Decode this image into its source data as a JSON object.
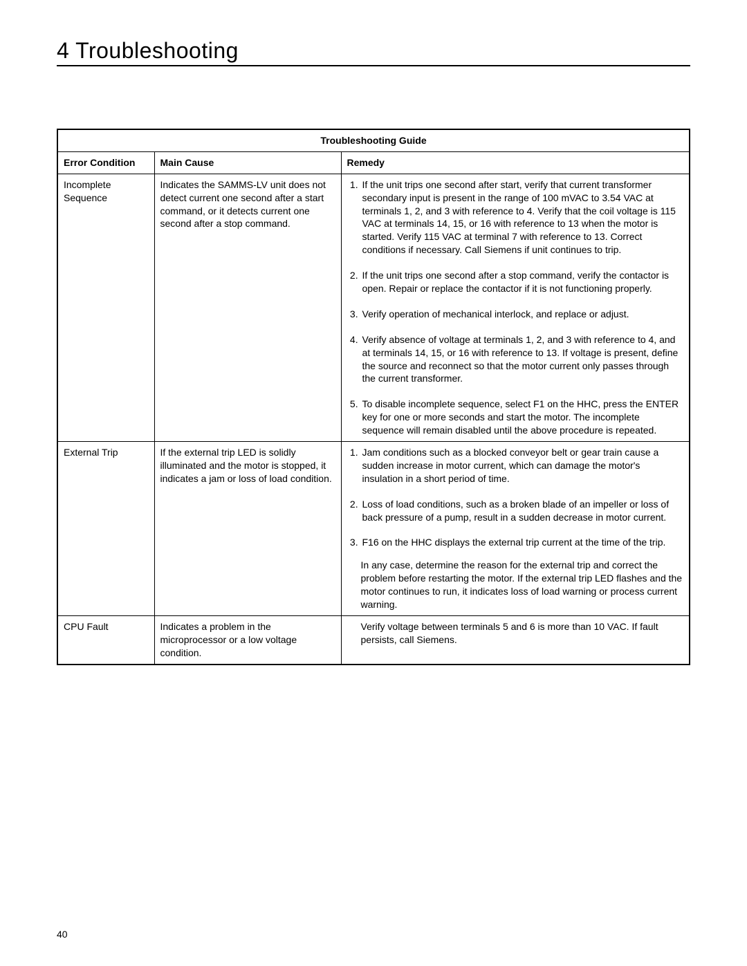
{
  "chapter": {
    "title": "4 Troubleshooting"
  },
  "pageNumber": "40",
  "table": {
    "guideHeader": "Troubleshooting Guide",
    "columns": {
      "error": "Error Condition",
      "cause": "Main Cause",
      "remedy": "Remedy"
    },
    "rows": [
      {
        "error": "Incomplete Sequence",
        "cause": "Indicates the SAMMS-LV unit does not detect current one second after a start command, or it detects current one second after a stop command.",
        "remedy": {
          "ordered": [
            "If the unit trips one second after start, verify that current transformer secondary input is present in the range of 100 mVAC to 3.54 VAC at terminals 1, 2, and 3 with reference to 4. Verify that the coil voltage is 115 VAC at terminals 14, 15, or 16 with reference to 13  when the motor is started. Verify 115 VAC at terminal 7 with reference to 13. Correct conditions if necessary. Call Siemens if unit continues to trip.",
            "If the unit trips one second after a stop command, verify the contactor is open. Repair or replace the contactor if it is not functioning properly.",
            "Verify operation of mechanical interlock, and replace or adjust.",
            "Verify absence of voltage at terminals 1, 2, and 3 with reference to 4, and at terminals 14, 15, or 16 with reference to 13. If voltage is present, define the source and reconnect so that the motor current only passes through the current transformer.",
            "To disable incomplete sequence, select F1 on the HHC, press the ENTER key for one or more seconds and start the motor.  The incomplete sequence will remain disabled until the above procedure is repeated."
          ],
          "tail": ""
        }
      },
      {
        "error": "External Trip",
        "cause": "If the external trip LED is solidly illuminated and the motor is stopped, it indicates a jam or loss of load condition.",
        "remedy": {
          "ordered": [
            "Jam conditions such as a blocked conveyor belt or gear train cause a sudden increase in motor current, which can damage the motor's insulation in a short period of time.",
            "Loss of load conditions, such as a broken blade of an impeller or loss of back pressure of a pump, result in a sudden decrease in motor current.",
            "F16 on the HHC displays the external trip current at the time of the trip."
          ],
          "tail": "In any case, determine the reason for the external trip and correct the problem before restarting the motor. If the external trip LED flashes and the motor continues to run, it indicates loss of load warning or process current warning."
        }
      },
      {
        "error": "CPU Fault",
        "cause": "Indicates a problem in the microprocessor or a low voltage condition.",
        "remedy": {
          "ordered": [],
          "tail": "Verify voltage between terminals 5 and 6 is more than 10 VAC. If fault persists, call Siemens."
        }
      }
    ]
  }
}
